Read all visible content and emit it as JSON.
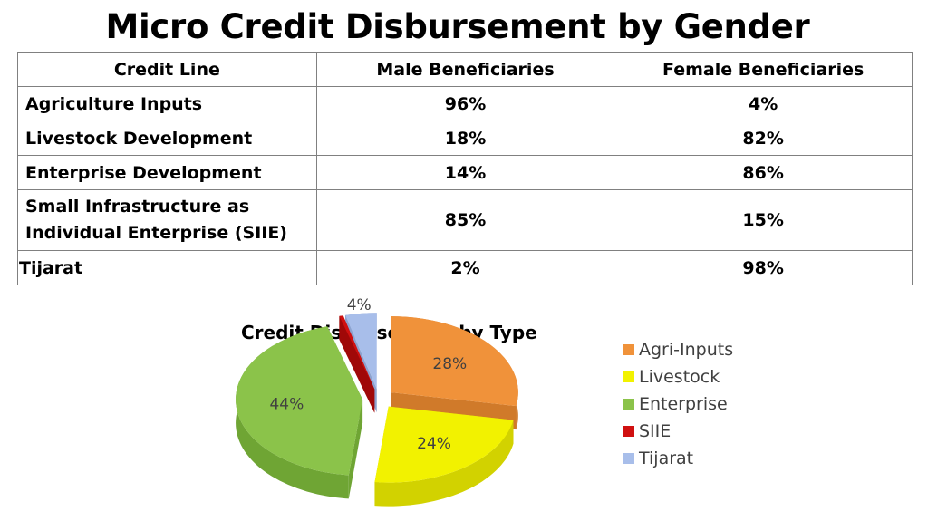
{
  "title": "Micro Credit Disbursement by Gender",
  "table": {
    "headers": [
      "Credit Line",
      "Male Beneficiaries",
      "Female Beneficiaries"
    ],
    "rows": [
      {
        "line": "Agriculture Inputs",
        "male": "96%",
        "female": "4%"
      },
      {
        "line": "Livestock Development",
        "male": "18%",
        "female": "82%"
      },
      {
        "line": "Enterprise Development",
        "male": "14%",
        "female": "86%"
      },
      {
        "line1": "Small Infrastructure as",
        "line2": "Individual Enterprise (SIIE)",
        "male": "85%",
        "female": "15%"
      },
      {
        "line": "Tijarat",
        "male": "2%",
        "female": "98%"
      }
    ]
  },
  "chart_data": {
    "type": "pie",
    "title": "Credit Disbursement by Type",
    "legend_position": "right",
    "categories": [
      "Agri-Inputs",
      "Livestock",
      "Enterprise",
      "SIIE",
      "Tijarat"
    ],
    "values": [
      28,
      24,
      44,
      0.5,
      4
    ],
    "labels": [
      "28%",
      "24%",
      "44%",
      "",
      "4%"
    ],
    "colors": [
      "#F0923A",
      "#F2F200",
      "#8BC34A",
      "#D01010",
      "#A8BEEA"
    ],
    "side_colors": [
      "#D07A2A",
      "#D2D200",
      "#6FA534",
      "#A00808",
      "#8CA2CE"
    ]
  }
}
